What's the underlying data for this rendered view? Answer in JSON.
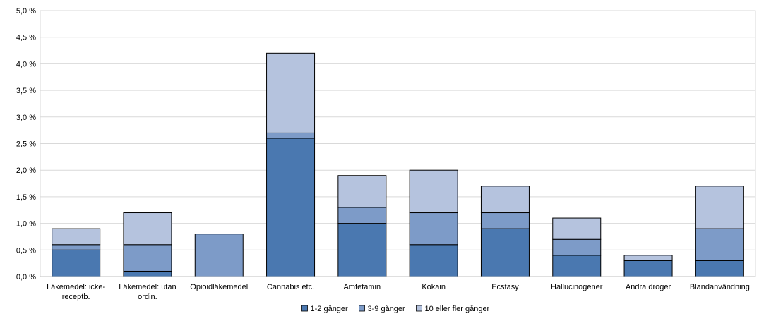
{
  "chart_data": {
    "type": "bar",
    "stacked": true,
    "categories": [
      "Läkemedel: icke-\nreceptb.",
      "Läkemedel: utan\nordin.",
      "Opioidläkemedel",
      "Cannabis etc.",
      "Amfetamin",
      "Kokain",
      "Ecstasy",
      "Hallucinogener",
      "Andra droger",
      "Blandanvändning"
    ],
    "series": [
      {
        "name": "1-2 gånger",
        "color": "#4a78b0",
        "values": [
          0.5,
          0.1,
          0.0,
          2.6,
          1.0,
          0.6,
          0.9,
          0.4,
          0.3,
          0.3
        ]
      },
      {
        "name": "3-9 gånger",
        "color": "#7d9bc8",
        "values": [
          0.1,
          0.5,
          0.8,
          0.1,
          0.3,
          0.6,
          0.3,
          0.3,
          0.0,
          0.6
        ]
      },
      {
        "name": "10 eller fler gånger",
        "color": "#b5c3de",
        "values": [
          0.3,
          0.6,
          0.0,
          1.5,
          0.6,
          0.8,
          0.5,
          0.4,
          0.1,
          0.8
        ]
      }
    ],
    "ylim": [
      0,
      5.0
    ],
    "yticks": [
      "0,0 %",
      "0,5 %",
      "1,0 %",
      "1,5 %",
      "2,0 %",
      "2,5 %",
      "3,0 %",
      "3,5 %",
      "4,0 %",
      "4,5 %",
      "5,0 %"
    ],
    "grid": true,
    "legend_position": "bottom"
  }
}
